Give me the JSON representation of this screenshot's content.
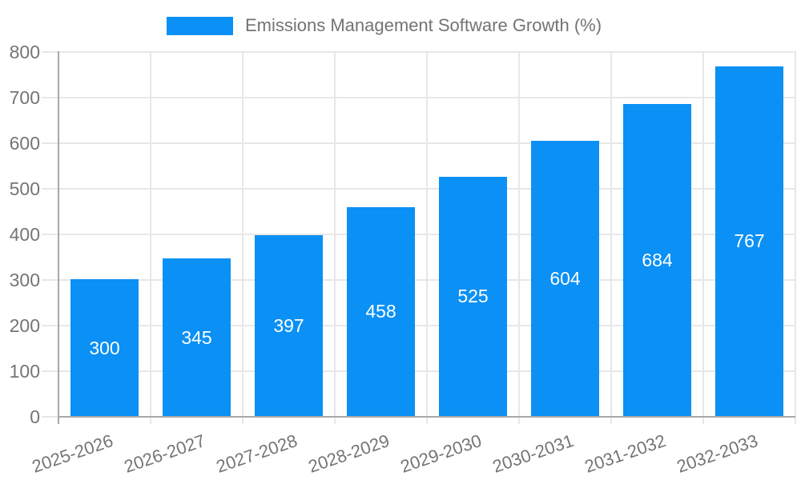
{
  "chart_data": {
    "type": "bar",
    "title": "Emissions Management Software Growth (%)",
    "series_name": "Emissions Management Software Growth (%)",
    "categories": [
      "2025-2026",
      "2026-2027",
      "2027-2028",
      "2028-2029",
      "2029-2030",
      "2030-2031",
      "2031-2032",
      "2032-2033"
    ],
    "values": [
      300,
      345,
      397,
      458,
      525,
      604,
      684,
      767
    ],
    "xlabel": "",
    "ylabel": "",
    "ylim": [
      0,
      800
    ],
    "ytick_step": 100,
    "yticks": [
      0,
      100,
      200,
      300,
      400,
      500,
      600,
      700,
      800
    ],
    "grid": true,
    "legend_position": "top",
    "bar_labels_inside_centered": true,
    "colors": {
      "bar": "#0b90f5",
      "bar_label": "#ffffff",
      "axis_text": "#757575",
      "legend_text": "#737373",
      "gridline": "#e7e7e7",
      "axis_line": "#a9a9a9",
      "background": "#ffffff"
    }
  }
}
